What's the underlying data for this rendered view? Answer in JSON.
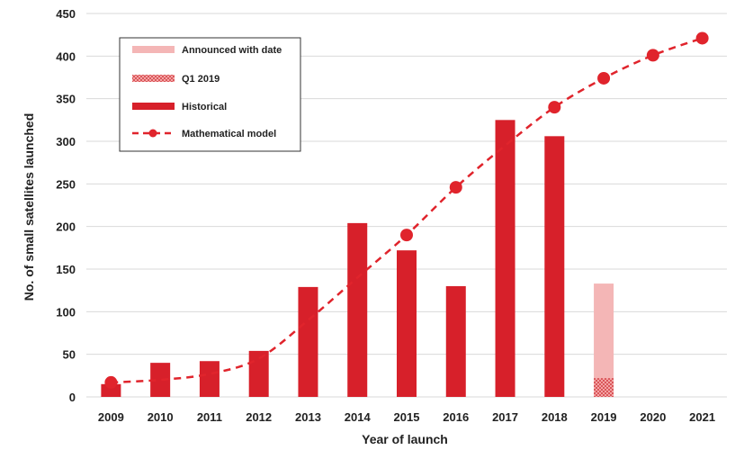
{
  "chart_data": {
    "type": "bar",
    "title": "",
    "xlabel": "Year of launch",
    "ylabel": "No. of small satellites launched",
    "ylim": [
      0,
      450
    ],
    "yticks": [
      0,
      50,
      100,
      150,
      200,
      250,
      300,
      350,
      400,
      450
    ],
    "grid": true,
    "legend_position": "top-left",
    "categories": [
      "2009",
      "2010",
      "2011",
      "2012",
      "2013",
      "2014",
      "2015",
      "2016",
      "2017",
      "2018",
      "2019",
      "2020",
      "2021"
    ],
    "series": [
      {
        "name": "Announced with date",
        "kind": "bar",
        "color": "#f4b6b6",
        "values": [
          null,
          null,
          null,
          null,
          null,
          null,
          null,
          null,
          null,
          null,
          133,
          null,
          null
        ]
      },
      {
        "name": "Q1 2019",
        "kind": "bar-hatched",
        "color": "#e0242c",
        "values": [
          null,
          null,
          null,
          null,
          null,
          null,
          null,
          null,
          null,
          null,
          22,
          null,
          null
        ]
      },
      {
        "name": "Historical",
        "kind": "bar",
        "color": "#d7202a",
        "values": [
          15,
          40,
          42,
          54,
          129,
          204,
          172,
          130,
          325,
          306,
          null,
          null,
          null
        ]
      },
      {
        "name": "Mathematical model",
        "kind": "dashed-line-markers",
        "color": "#e0242c",
        "values": [
          17,
          null,
          null,
          null,
          null,
          null,
          190,
          246,
          null,
          340,
          374,
          401,
          421
        ]
      }
    ],
    "model_curve_values": [
      17,
      20,
      27,
      45,
      90,
      140,
      190,
      246,
      295,
      340,
      374,
      401,
      421
    ]
  }
}
